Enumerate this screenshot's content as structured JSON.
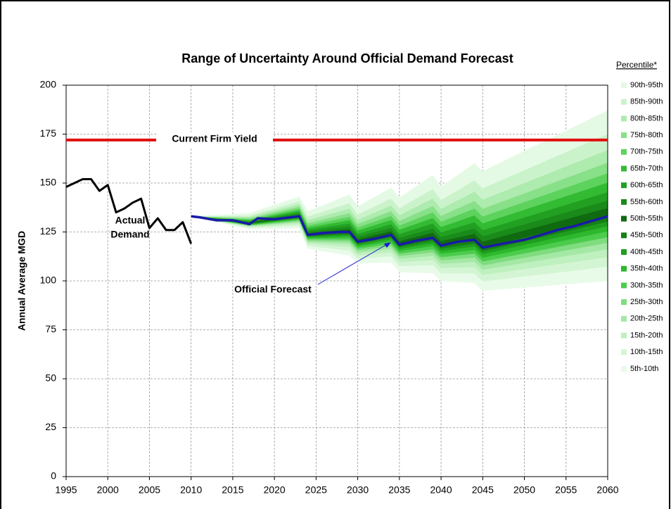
{
  "chart_data": {
    "type": "fan",
    "title": "Range of Uncertainty Around Official Demand Forecast",
    "ylabel": "Annual Average MGD",
    "xlim": [
      1995,
      2060
    ],
    "xticks": [
      1995,
      2000,
      2005,
      2010,
      2015,
      2020,
      2025,
      2030,
      2035,
      2040,
      2045,
      2050,
      2055,
      2060
    ],
    "ylim": [
      0,
      200
    ],
    "yticks": [
      0,
      25,
      50,
      75,
      100,
      125,
      150,
      175,
      200
    ],
    "grid": true,
    "legend_title": "Percentile*",
    "actual": {
      "label_lines": [
        "Actual",
        "Demand"
      ],
      "color": "#000000",
      "x": [
        1995,
        1996,
        1997,
        1998,
        1999,
        2000,
        2001,
        2002,
        2003,
        2004,
        2005,
        2006,
        2007,
        2008,
        2009,
        2010
      ],
      "values": [
        148,
        150,
        152,
        152,
        146,
        149,
        135,
        137,
        140,
        142,
        127,
        132,
        126,
        126,
        130,
        119
      ]
    },
    "forecast": {
      "label": "Official Forecast",
      "color": "#1a1aa6",
      "x": [
        2010,
        2011,
        2013,
        2015,
        2016,
        2017,
        2018,
        2020,
        2022,
        2023,
        2024,
        2026,
        2028,
        2029,
        2030,
        2032,
        2034,
        2035,
        2037,
        2039,
        2040,
        2042,
        2044,
        2045,
        2048,
        2050,
        2052,
        2054,
        2056,
        2058,
        2060
      ],
      "values": [
        133,
        132.5,
        131,
        131,
        130,
        129,
        132,
        131.5,
        132.5,
        133,
        123.5,
        124.5,
        125,
        125,
        120,
        121.5,
        123.5,
        118.5,
        120.5,
        122,
        118,
        120,
        121,
        117,
        119.5,
        121,
        123.5,
        126,
        128,
        130.5,
        133
      ]
    },
    "firm_yield": {
      "label": "Current Firm Yield",
      "color": "#e01010",
      "value": 172
    },
    "band_x": [
      2010,
      2017,
      2023,
      2024,
      2029,
      2030,
      2034,
      2035,
      2039,
      2040,
      2044,
      2045,
      2060
    ],
    "band_edges": [
      [
        133,
        126.5,
        127,
        116.5,
        113,
        109,
        109.5,
        104.5,
        104,
        100,
        99,
        95,
        100
      ],
      [
        133,
        127.2,
        128.3,
        118,
        115.6,
        111.4,
        112.6,
        107.6,
        108,
        104,
        103.8,
        99.8,
        107.3
      ],
      [
        133,
        127.6,
        129.2,
        119.1,
        117.4,
        113.1,
        114.7,
        109.7,
        110.7,
        106.7,
        107.1,
        103.1,
        112.2
      ],
      [
        133,
        128,
        129.9,
        119.9,
        118.9,
        114.4,
        116.4,
        111.4,
        112.8,
        108.8,
        109.8,
        105.8,
        116.2
      ],
      [
        133,
        128.3,
        130.5,
        120.6,
        120.1,
        115.5,
        117.8,
        112.8,
        114.6,
        110.6,
        112,
        108,
        119.5
      ],
      [
        133,
        128.5,
        131.1,
        121.3,
        121.2,
        116.5,
        119,
        114,
        116.2,
        112.2,
        114,
        110,
        122.4
      ],
      [
        133,
        128.8,
        131.6,
        121.9,
        122.2,
        117.5,
        120.3,
        115.3,
        117.9,
        113.9,
        115.9,
        111.9,
        125.4
      ],
      [
        133,
        129,
        132.1,
        122.4,
        123.2,
        118.3,
        121.4,
        116.4,
        119.3,
        115.3,
        117.7,
        113.7,
        128
      ],
      [
        133,
        129.3,
        132.5,
        122.9,
        124,
        119.1,
        122.4,
        117.4,
        120.6,
        116.6,
        119.2,
        115.2,
        130.4
      ],
      [
        133,
        129.5,
        133,
        123.5,
        125,
        120,
        123.5,
        118.5,
        122,
        118,
        121,
        117,
        133
      ],
      [
        133,
        129.9,
        133.8,
        124.5,
        126.5,
        121.4,
        125.4,
        120.4,
        124.6,
        120.4,
        124.1,
        120.1,
        137.3
      ],
      [
        133,
        130.3,
        134.5,
        125.3,
        127.9,
        122.7,
        127.1,
        122.1,
        126.8,
        122.5,
        126.9,
        122.9,
        141.1
      ],
      [
        133,
        130.7,
        135.3,
        126.3,
        129.4,
        124.1,
        129,
        124,
        129.4,
        124.9,
        130,
        126,
        145.4
      ],
      [
        133,
        131.1,
        136.2,
        127.3,
        131.1,
        125.8,
        131.2,
        126.2,
        132.2,
        127.6,
        133.5,
        129.5,
        150.3
      ],
      [
        133,
        131.6,
        137.1,
        128.4,
        132.8,
        127.4,
        133.3,
        128.3,
        135.1,
        130.3,
        137,
        133,
        155.1
      ],
      [
        133,
        132.1,
        138.1,
        129.6,
        134.7,
        129.2,
        135.7,
        130.7,
        138.3,
        133.3,
        140.9,
        136.9,
        160.5
      ],
      [
        133,
        132.7,
        139.3,
        131.1,
        137,
        131.3,
        138.6,
        133.6,
        142.2,
        136.9,
        145.6,
        141.6,
        167
      ],
      [
        133,
        133.4,
        140.8,
        132.9,
        139.8,
        134,
        142.2,
        137.2,
        147,
        141.4,
        151.4,
        147.4,
        175.1
      ],
      [
        133,
        134.5,
        143,
        135.5,
        144,
        138,
        147.5,
        142.5,
        154,
        148,
        160,
        156,
        187
      ]
    ],
    "bands": [
      {
        "name": "5th-10th",
        "color": "#e8fbe8"
      },
      {
        "name": "10th-15th",
        "color": "#d4f5d4"
      },
      {
        "name": "15th-20th",
        "color": "#bff0bf"
      },
      {
        "name": "20th-25th",
        "color": "#a5e8a5"
      },
      {
        "name": "25th-30th",
        "color": "#7fdc7f"
      },
      {
        "name": "30th-35th",
        "color": "#4ccc4c"
      },
      {
        "name": "35th-40th",
        "color": "#2db82d"
      },
      {
        "name": "40th-45th",
        "color": "#1f9e1f"
      },
      {
        "name": "45th-50th",
        "color": "#157f15"
      },
      {
        "name": "50th-55th",
        "color": "#106a10"
      },
      {
        "name": "55th-60th",
        "color": "#1a8a1a"
      },
      {
        "name": "60th-65th",
        "color": "#22a022"
      },
      {
        "name": "65th-70th",
        "color": "#33bb33"
      },
      {
        "name": "70th-75th",
        "color": "#5dd35d"
      },
      {
        "name": "75th-80th",
        "color": "#88e088"
      },
      {
        "name": "80th-85th",
        "color": "#aeebae"
      },
      {
        "name": "85th-90th",
        "color": "#cbf3cb"
      },
      {
        "name": "90th-95th",
        "color": "#e4fae4"
      }
    ]
  }
}
